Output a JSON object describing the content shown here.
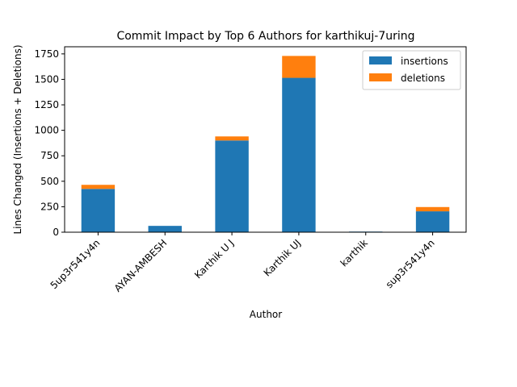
{
  "chart_data": {
    "type": "bar",
    "stacked": true,
    "title": "Commit Impact by Top 6 Authors for karthikuj-7uring",
    "xlabel": "Author",
    "ylabel": "Lines Changed (Insertions + Deletions)",
    "categories": [
      "5up3r541y4n",
      "AYAN-AMBESH",
      "Karthik U J",
      "Karthik UJ",
      "karthik",
      "sup3r541y4n"
    ],
    "series": [
      {
        "name": "insertions",
        "color": "#1f77b4",
        "values": [
          425,
          62,
          900,
          1515,
          6,
          205
        ]
      },
      {
        "name": "deletions",
        "color": "#ff7f0e",
        "values": [
          40,
          0,
          40,
          215,
          0,
          42
        ]
      }
    ],
    "ylim": [
      0,
      1820
    ],
    "yticks": [
      0,
      250,
      500,
      750,
      1000,
      1250,
      1500,
      1750
    ],
    "grid": false,
    "legend_position": "upper right"
  }
}
